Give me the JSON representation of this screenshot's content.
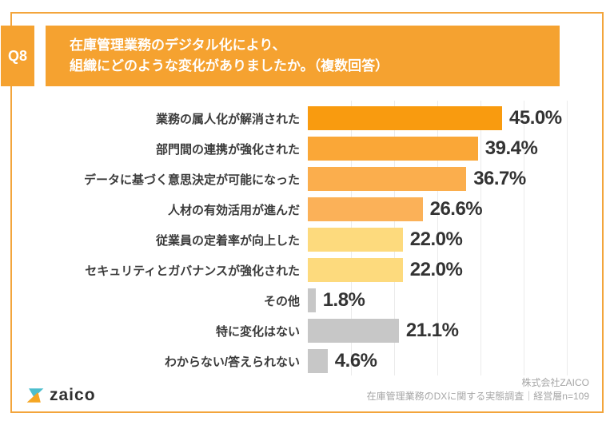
{
  "header": {
    "badge": "Q8",
    "title_line1": "在庫管理業務のデジタル化により、",
    "title_line2": "組織にどのような変化がありましたか。（複数回答）",
    "accent_color": "#F5A230"
  },
  "chart_data": {
    "type": "bar",
    "orientation": "horizontal",
    "categories": [
      "業務の属人化が解消された",
      "部門間の連携が強化された",
      "データに基づく意思決定が可能になった",
      "人材の有効活用が進んだ",
      "従業員の定着率が向上した",
      "セキュリティとガバナンスが強化された",
      "その他",
      "特に変化はない",
      "わからない/答えられない"
    ],
    "values": [
      45.0,
      39.4,
      36.7,
      26.6,
      22.0,
      22.0,
      1.8,
      21.1,
      4.6
    ],
    "value_labels": [
      "45.0%",
      "39.4%",
      "36.7%",
      "26.6%",
      "22.0%",
      "22.0%",
      "1.8%",
      "21.1%",
      "4.6%"
    ],
    "bar_colors": [
      "#F99B0F",
      "#FAA737",
      "#FBAE4D",
      "#FBB158",
      "#FDDA7D",
      "#FDDA7D",
      "#C7C7C7",
      "#C7C7C7",
      "#C7C7C7"
    ],
    "xlim": [
      0,
      60
    ],
    "gridline_step": 10,
    "grid": true,
    "gridline_color": "#EBEBEB",
    "title": "在庫管理業務のデジタル化により、組織にどのような変化がありましたか。（複数回答）",
    "xlabel": "",
    "ylabel": ""
  },
  "footer": {
    "logo_text": "zaico",
    "logo_teal": "#4DBECD",
    "logo_orange": "#F5A623",
    "credit_line1": "株式会社ZAICO",
    "credit_line2": "在庫管理業務のDXに関する実態調査｜経営層n=109"
  }
}
